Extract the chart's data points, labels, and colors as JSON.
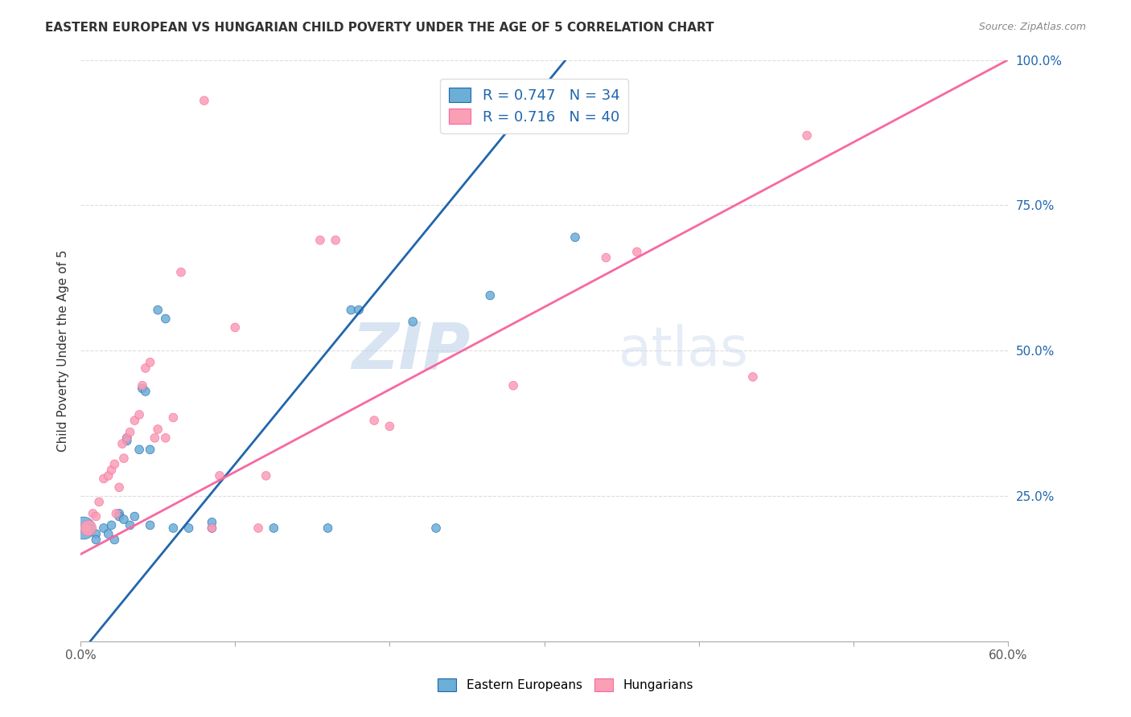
{
  "title": "EASTERN EUROPEAN VS HUNGARIAN CHILD POVERTY UNDER THE AGE OF 5 CORRELATION CHART",
  "source": "Source: ZipAtlas.com",
  "xlabel": "",
  "ylabel": "Child Poverty Under the Age of 5",
  "xlim": [
    0.0,
    0.6
  ],
  "ylim": [
    0.0,
    1.0
  ],
  "xticks": [
    0.0,
    0.1,
    0.2,
    0.3,
    0.4,
    0.5,
    0.6
  ],
  "xticklabels": [
    "0.0%",
    "",
    "",
    "",
    "",
    "",
    "60.0%"
  ],
  "yticks": [
    0.0,
    0.25,
    0.5,
    0.75,
    1.0
  ],
  "yticklabels": [
    "",
    "25.0%",
    "50.0%",
    "75.0%",
    "100.0%"
  ],
  "legend_r1": "R = 0.747",
  "legend_n1": "N = 34",
  "legend_r2": "R = 0.716",
  "legend_n2": "N = 40",
  "color_blue": "#6baed6",
  "color_pink": "#fa9fb5",
  "color_blue_line": "#2166ac",
  "color_pink_line": "#f768a1",
  "watermark_zip": "ZIP",
  "watermark_atlas": "atlas",
  "label_eastern": "Eastern Europeans",
  "label_hungarian": "Hungarians",
  "blue_dots": [
    [
      0.005,
      0.195
    ],
    [
      0.01,
      0.185
    ],
    [
      0.01,
      0.175
    ],
    [
      0.015,
      0.195
    ],
    [
      0.018,
      0.185
    ],
    [
      0.02,
      0.2
    ],
    [
      0.022,
      0.175
    ],
    [
      0.025,
      0.22
    ],
    [
      0.025,
      0.215
    ],
    [
      0.028,
      0.21
    ],
    [
      0.03,
      0.35
    ],
    [
      0.03,
      0.345
    ],
    [
      0.032,
      0.2
    ],
    [
      0.035,
      0.215
    ],
    [
      0.038,
      0.33
    ],
    [
      0.04,
      0.435
    ],
    [
      0.042,
      0.43
    ],
    [
      0.045,
      0.33
    ],
    [
      0.045,
      0.2
    ],
    [
      0.05,
      0.57
    ],
    [
      0.055,
      0.555
    ],
    [
      0.06,
      0.195
    ],
    [
      0.07,
      0.195
    ],
    [
      0.085,
      0.195
    ],
    [
      0.085,
      0.205
    ],
    [
      0.125,
      0.195
    ],
    [
      0.16,
      0.195
    ],
    [
      0.175,
      0.57
    ],
    [
      0.18,
      0.57
    ],
    [
      0.215,
      0.55
    ],
    [
      0.23,
      0.195
    ],
    [
      0.265,
      0.595
    ],
    [
      0.32,
      0.695
    ],
    [
      0.002,
      0.195
    ]
  ],
  "blue_sizes": [
    60,
    60,
    60,
    60,
    60,
    60,
    60,
    60,
    60,
    60,
    60,
    60,
    60,
    60,
    60,
    60,
    60,
    60,
    60,
    60,
    60,
    60,
    60,
    60,
    60,
    60,
    60,
    60,
    60,
    60,
    60,
    60,
    60,
    400
  ],
  "pink_dots": [
    [
      0.004,
      0.195
    ],
    [
      0.008,
      0.22
    ],
    [
      0.01,
      0.215
    ],
    [
      0.012,
      0.24
    ],
    [
      0.015,
      0.28
    ],
    [
      0.018,
      0.285
    ],
    [
      0.02,
      0.295
    ],
    [
      0.022,
      0.305
    ],
    [
      0.023,
      0.22
    ],
    [
      0.025,
      0.265
    ],
    [
      0.027,
      0.34
    ],
    [
      0.028,
      0.315
    ],
    [
      0.03,
      0.35
    ],
    [
      0.032,
      0.36
    ],
    [
      0.035,
      0.38
    ],
    [
      0.038,
      0.39
    ],
    [
      0.04,
      0.44
    ],
    [
      0.042,
      0.47
    ],
    [
      0.045,
      0.48
    ],
    [
      0.048,
      0.35
    ],
    [
      0.05,
      0.365
    ],
    [
      0.055,
      0.35
    ],
    [
      0.06,
      0.385
    ],
    [
      0.065,
      0.635
    ],
    [
      0.085,
      0.195
    ],
    [
      0.09,
      0.285
    ],
    [
      0.1,
      0.54
    ],
    [
      0.115,
      0.195
    ],
    [
      0.12,
      0.285
    ],
    [
      0.19,
      0.38
    ],
    [
      0.2,
      0.37
    ],
    [
      0.28,
      0.44
    ],
    [
      0.34,
      0.66
    ],
    [
      0.36,
      0.67
    ],
    [
      0.435,
      0.455
    ],
    [
      0.47,
      0.87
    ],
    [
      0.08,
      0.93
    ],
    [
      0.155,
      0.69
    ],
    [
      0.165,
      0.69
    ],
    [
      0.005,
      0.195
    ]
  ],
  "pink_sizes": [
    60,
    60,
    60,
    60,
    60,
    60,
    60,
    60,
    60,
    60,
    60,
    60,
    60,
    60,
    60,
    60,
    60,
    60,
    60,
    60,
    60,
    60,
    60,
    60,
    60,
    60,
    60,
    60,
    60,
    60,
    60,
    60,
    60,
    60,
    60,
    60,
    60,
    60,
    60,
    200
  ],
  "blue_line_x": [
    0.0,
    0.32
  ],
  "blue_line_y": [
    -0.02,
    1.02
  ],
  "pink_line_x": [
    0.0,
    0.6
  ],
  "pink_line_y": [
    0.15,
    1.0
  ]
}
